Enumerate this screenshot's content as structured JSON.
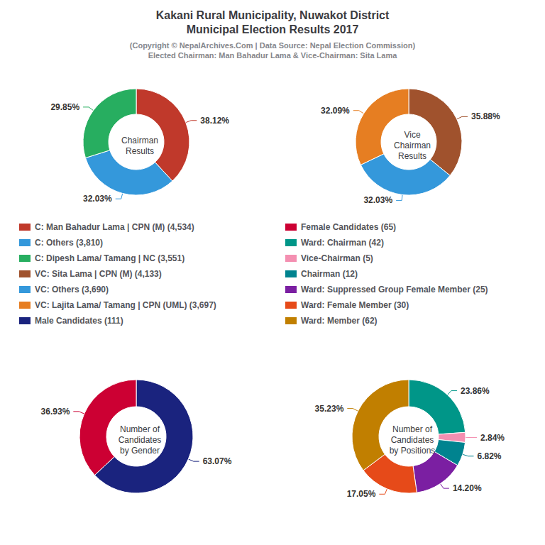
{
  "title": "Kakani Rural Municipality, Nuwakot District\nMunicipal Election Results 2017",
  "subtitle": "(Copyright © NepalArchives.Com | Data Source: Nepal Election Commission)\nElected Chairman: Man Bahadur Lama & Vice-Chairman: Sita Lama",
  "legend": "center",
  "chart_data": [
    {
      "type": "pie",
      "title": "Chairman\nResults",
      "categories": [
        "C: Man Bahadur Lama | CPN (M) (4,534)",
        "C: Others (3,810)",
        "C: Dipesh Lama/ Tamang | NC (3,551)"
      ],
      "values": [
        38.12,
        32.03,
        29.85
      ],
      "value_labels": [
        "38.12%",
        "32.03%",
        "29.85%"
      ],
      "colors": [
        "#C0392B",
        "#3498DB",
        "#27AE60"
      ],
      "data_labels": true
    },
    {
      "type": "pie",
      "title": "Vice\nChairman\nResults",
      "categories": [
        "VC: Sita Lama | CPN (M) (4,133)",
        "VC: Others (3,690)",
        "VC: Lajita Lama/ Tamang | CPN (UML) (3,697)"
      ],
      "values": [
        35.88,
        32.03,
        32.09
      ],
      "value_labels": [
        "35.88%",
        "32.03%",
        "32.09%"
      ],
      "colors": [
        "#A0522D",
        "#3498DB",
        "#E67E22"
      ],
      "data_labels": true
    },
    {
      "type": "pie",
      "title": "Number of\nCandidates\nby Gender",
      "categories": [
        "Male Candidates (111)",
        "Female Candidates (65)"
      ],
      "values": [
        63.07,
        36.93
      ],
      "value_labels": [
        "63.07%",
        "36.93%"
      ],
      "colors": [
        "#1A237E",
        "#CC0033"
      ],
      "data_labels": true
    },
    {
      "type": "pie",
      "title": "Number of\nCandidates\nby Positions",
      "categories": [
        "Ward: Chairman (42)",
        "Vice-Chairman (5)",
        "Chairman (12)",
        "Ward: Suppressed Group Female Member (25)",
        "Ward: Female Member (30)",
        "Ward: Member (62)"
      ],
      "values": [
        23.86,
        2.84,
        6.82,
        14.2,
        17.05,
        35.23
      ],
      "value_labels": [
        "23.86%",
        "2.84%",
        "6.82%",
        "14.20%",
        "17.05%",
        "35.23%"
      ],
      "colors": [
        "#009688",
        "#F48FB1",
        "#00838F",
        "#7B1FA2",
        "#E64A19",
        "#C17F00"
      ],
      "data_labels": true
    }
  ]
}
